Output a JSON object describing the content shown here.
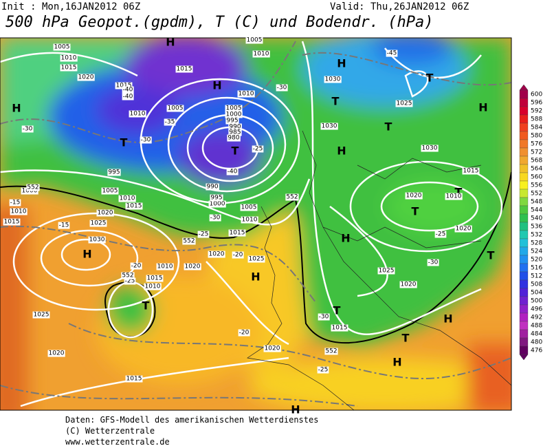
{
  "header": {
    "init": "Init : Mon,16JAN2012 06Z",
    "valid": "Valid: Thu,26JAN2012 06Z",
    "title": "500 hPa Geopot.(gpdm), T (C) und Bodendr. (hPa)"
  },
  "colorbar": {
    "ticks": [
      600,
      596,
      592,
      588,
      584,
      580,
      576,
      572,
      568,
      564,
      560,
      556,
      552,
      548,
      544,
      540,
      536,
      532,
      528,
      524,
      520,
      516,
      512,
      508,
      504,
      500,
      496,
      492,
      488,
      484,
      480,
      476
    ],
    "colors": [
      "#a0004a",
      "#c0003a",
      "#d8002c",
      "#e8201c",
      "#f04020",
      "#f05a20",
      "#f07828",
      "#f09030",
      "#f0a830",
      "#f0c028",
      "#f8d820",
      "#f8f020",
      "#c8e830",
      "#80d840",
      "#50c840",
      "#30c050",
      "#20c080",
      "#20c8b0",
      "#20c0d8",
      "#20a8e8",
      "#2090f0",
      "#2070f0",
      "#2050e8",
      "#3030e0",
      "#5020d8",
      "#7020d0",
      "#9020c8",
      "#b020c0",
      "#c030c0",
      "#a020a0",
      "#801880",
      "#600060"
    ]
  },
  "map_labels": [
    "H",
    "H",
    "T",
    "H",
    "T",
    "T",
    "H",
    "H",
    "T",
    "T",
    "H",
    "T",
    "T",
    "H",
    "H",
    "H",
    "T",
    "T",
    "H",
    "T",
    "H",
    "T",
    "H",
    "1005",
    "1010",
    "1015",
    "1020",
    "1015",
    "1010",
    "1005",
    "1015",
    "1010",
    "1005",
    "1010",
    "1005",
    "1000",
    "995",
    "990",
    "985",
    "980",
    "995",
    "1000",
    "1005",
    "1010",
    "1015",
    "1010",
    "1015",
    "1020",
    "1025",
    "1030",
    "1030",
    "1025",
    "1030",
    "1030",
    "1015",
    "1020",
    "1010",
    "1020",
    "1025",
    "1020",
    "1015",
    "1020",
    "1025",
    "1015",
    "1010",
    "1005",
    "1000",
    "990",
    "995",
    "1020",
    "1010",
    "1020",
    "1015",
    "1010",
    "1025",
    "1020",
    "1015",
    "-45",
    "-30",
    "-40",
    "-40",
    "-35",
    "-30",
    "-30",
    "-25",
    "-40",
    "-30",
    "-25",
    "-20",
    "-15",
    "-15",
    "-20",
    "-25",
    "-20",
    "-25",
    "-25",
    "-30",
    "-30",
    "552",
    "552",
    "552",
    "552",
    "552"
  ],
  "footer": {
    "lines": [
      "Daten: GFS-Modell des amerikanischen Wetterdienstes",
      "(C) Wetterzentrale",
      "www.wetterzentrale.de"
    ]
  }
}
